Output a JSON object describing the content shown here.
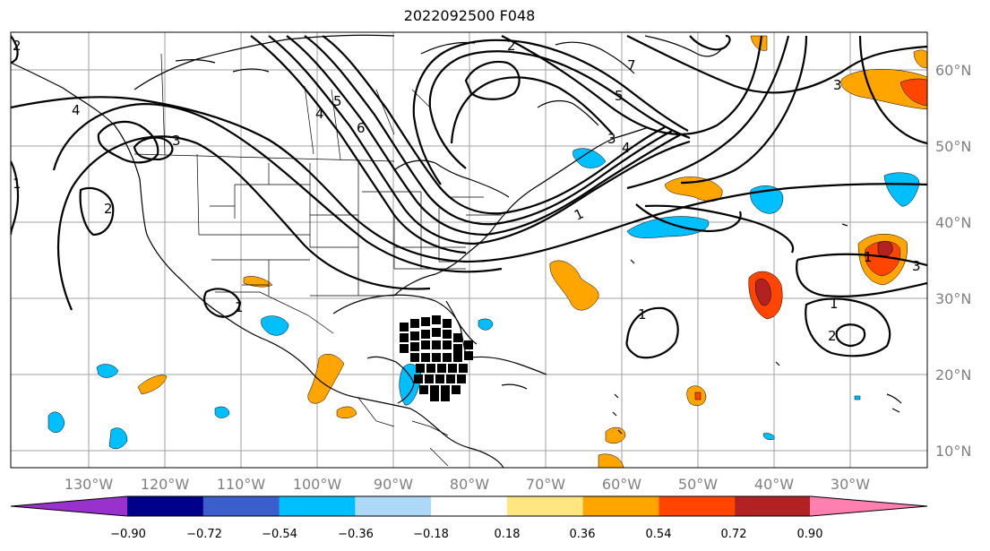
{
  "title": "2022092500 F048",
  "longitude_labels": [
    "130°W",
    "120°W",
    "110°W",
    "100°W",
    "90°W",
    "80°W",
    "70°W",
    "60°W",
    "50°W",
    "40°W",
    "30°W"
  ],
  "latitude_labels": [
    "60°N",
    "50°N",
    "40°N",
    "30°N",
    "20°N",
    "10°N"
  ],
  "colorbar": {
    "ticks": [
      "−0.90",
      "−0.72",
      "−0.54",
      "−0.36",
      "−0.18",
      "0.18",
      "0.36",
      "0.54",
      "0.72",
      "0.90"
    ],
    "colors": [
      "#9932cc",
      "#00008b",
      "#3a5fcd",
      "#00bfff",
      "#add8f7",
      "#ffffff",
      "#ffe680",
      "#ffa500",
      "#ff4500",
      "#b22222",
      "#ff7fb0"
    ]
  },
  "contour_labels": [
    "1",
    "2",
    "3",
    "4",
    "5",
    "6",
    "7"
  ],
  "colors": {
    "grid": "#a0a0a0",
    "tick_text": "#808080"
  }
}
